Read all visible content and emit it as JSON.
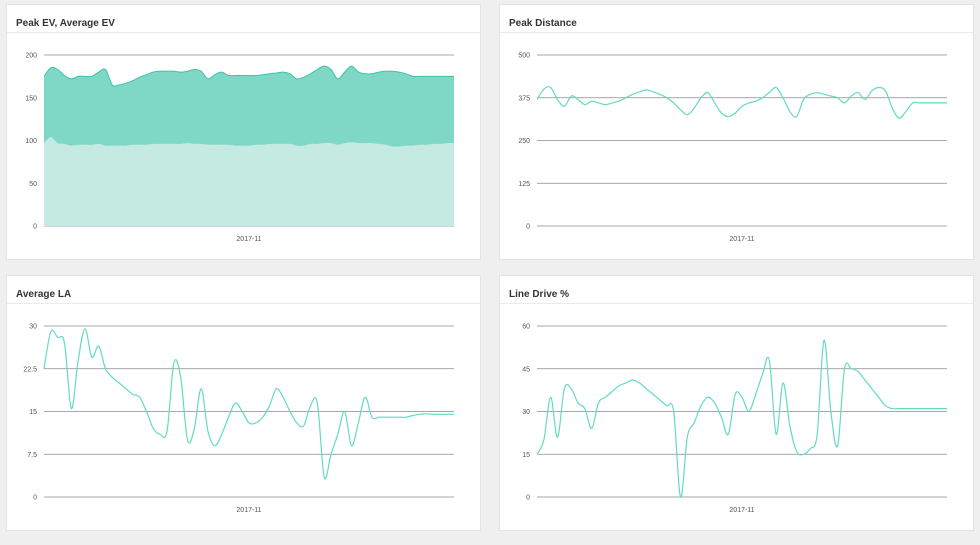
{
  "colors": {
    "area_top": "#7fd8c6",
    "area_bottom": "#c4eae2",
    "line": "#62dbbf",
    "grid": "#8a8a8a"
  },
  "chart_data": [
    {
      "type": "area",
      "title": "Peak EV, Average EV",
      "xlabel": "",
      "ylabel": "",
      "x_tick": "2017-11",
      "ylim": [
        0,
        200
      ],
      "y_ticks": [
        "0",
        "50",
        "100",
        "150",
        "200"
      ],
      "grid": true,
      "series": [
        {
          "values": [
            175,
            185,
            183,
            176,
            172,
            175,
            175,
            175,
            180,
            183,
            165,
            165,
            167,
            170,
            174,
            177,
            180,
            181,
            181,
            181,
            180,
            181,
            183,
            181,
            172,
            177,
            180,
            176,
            176,
            176,
            176,
            176,
            177,
            178,
            179,
            180,
            178,
            172,
            174,
            178,
            183,
            187,
            183,
            172,
            180,
            187,
            180,
            178,
            178,
            180,
            181,
            181,
            180,
            178,
            175,
            175,
            175,
            175,
            175,
            175,
            175
          ]
        },
        {
          "values": [
            97,
            104,
            97,
            96,
            94,
            95,
            95,
            95,
            96,
            94,
            94,
            94,
            94,
            95,
            95,
            95,
            96,
            96,
            96,
            96,
            96,
            97,
            96,
            96,
            95,
            95,
            95,
            95,
            94,
            94,
            94,
            95,
            95,
            96,
            96,
            96,
            96,
            94,
            94,
            96,
            96,
            97,
            97,
            95,
            97,
            98,
            97,
            97,
            97,
            96,
            95,
            93,
            93,
            94,
            94,
            95,
            95,
            96,
            96,
            97,
            97
          ]
        }
      ]
    },
    {
      "type": "line",
      "title": "Peak Distance",
      "xlabel": "",
      "ylabel": "",
      "x_tick": "2017-11",
      "ylim": [
        0,
        500
      ],
      "y_ticks": [
        "0",
        "125",
        "250",
        "375",
        "500"
      ],
      "grid": true,
      "series": [
        {
          "values": [
            370,
            400,
            405,
            370,
            350,
            380,
            370,
            355,
            365,
            360,
            355,
            360,
            365,
            375,
            385,
            392,
            398,
            392,
            385,
            375,
            360,
            340,
            325,
            345,
            375,
            390,
            360,
            330,
            320,
            330,
            350,
            360,
            365,
            375,
            390,
            405,
            375,
            335,
            320,
            370,
            385,
            390,
            385,
            380,
            375,
            360,
            380,
            390,
            370,
            395,
            405,
            395,
            345,
            315,
            335,
            360,
            360,
            360,
            360,
            360,
            360
          ]
        }
      ]
    },
    {
      "type": "line",
      "title": "Average LA",
      "xlabel": "",
      "ylabel": "",
      "x_tick": "2017-11",
      "ylim": [
        0,
        30
      ],
      "y_ticks": [
        "0",
        "7.5",
        "15",
        "22.5",
        "30"
      ],
      "grid": true,
      "series": [
        {
          "values": [
            22.5,
            29,
            28,
            27,
            15.5,
            24,
            29.5,
            24.5,
            26.5,
            22.5,
            21,
            20,
            19,
            18,
            17.5,
            15,
            12,
            11,
            11.5,
            23.5,
            21,
            10,
            12,
            19,
            11.5,
            9,
            11,
            14,
            16.5,
            15,
            13,
            13,
            14,
            16,
            19,
            17.5,
            15,
            13,
            12.5,
            16,
            16.5,
            3.5,
            7.5,
            11,
            15,
            9,
            13,
            17.5,
            14,
            14,
            14,
            14,
            14,
            14,
            14.3,
            14.5,
            14.6,
            14.5,
            14.5,
            14.5,
            14.5
          ]
        }
      ]
    },
    {
      "type": "line",
      "title": "Line Drive %",
      "xlabel": "",
      "ylabel": "",
      "x_tick": "2017-11",
      "ylim": [
        0,
        60
      ],
      "y_ticks": [
        "0",
        "15",
        "30",
        "45",
        "60"
      ],
      "grid": true,
      "series": [
        {
          "values": [
            15,
            20,
            35,
            21,
            38,
            38,
            33,
            31,
            24,
            33,
            35,
            37,
            39,
            40,
            41,
            40,
            38,
            36,
            34,
            32,
            30,
            0,
            21,
            26,
            32,
            35,
            33,
            28,
            22,
            36,
            35,
            30,
            36,
            43,
            48,
            22,
            40,
            25,
            16,
            15,
            17,
            22,
            55,
            30,
            18,
            45,
            45,
            44,
            41,
            38,
            35,
            32,
            31,
            31,
            31,
            31,
            31,
            31,
            31,
            31,
            31
          ]
        }
      ]
    }
  ]
}
